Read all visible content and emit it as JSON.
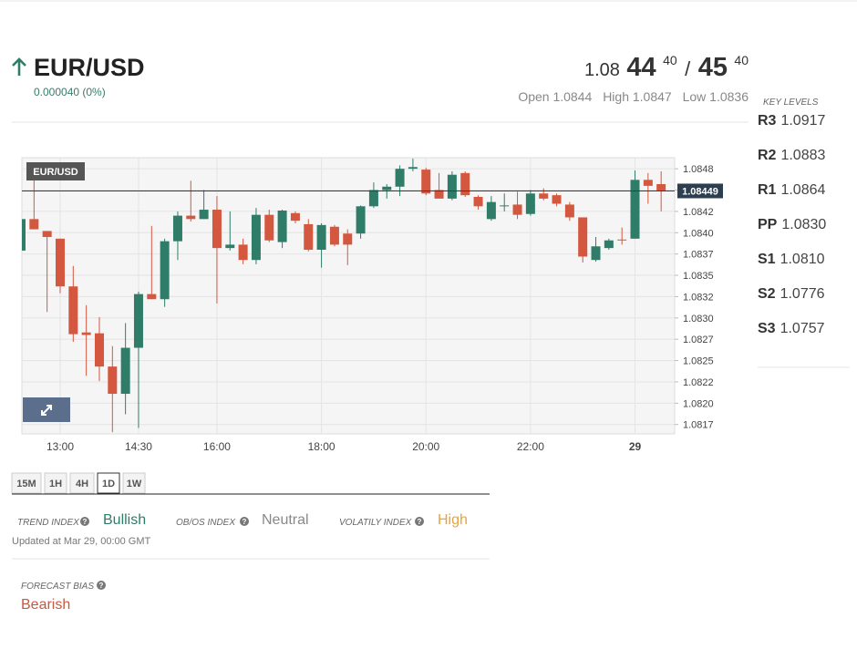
{
  "header": {
    "symbol": "EUR/USD",
    "change": "0.000040 (0%)",
    "quote": {
      "bid_big": "1.08",
      "bid_pips": "44",
      "bid_frac": "40",
      "separator": "/",
      "ask_pips": "45",
      "ask_frac": "40"
    },
    "stats": [
      "Open 1.0844",
      "High 1.0847",
      "Low 1.0836"
    ]
  },
  "key_levels": {
    "title": "KEY LEVELS",
    "levels": [
      {
        "name": "R3",
        "value": "1.0917"
      },
      {
        "name": "R2",
        "value": "1.0883"
      },
      {
        "name": "R1",
        "value": "1.0864"
      },
      {
        "name": "PP",
        "value": "1.0830"
      },
      {
        "name": "S1",
        "value": "1.0810"
      },
      {
        "name": "S2",
        "value": "1.0776"
      },
      {
        "name": "S3",
        "value": "1.0757"
      }
    ]
  },
  "chart_data": {
    "type": "candlestick",
    "title": "EUR/USD",
    "categories": [
      null,
      null,
      null,
      "13:00",
      null,
      null,
      null,
      null,
      null,
      "14:30",
      null,
      null,
      null,
      null,
      null,
      "16:00",
      null,
      null,
      null,
      null,
      null,
      null,
      null,
      "18:00",
      null,
      null,
      null,
      null,
      null,
      null,
      null,
      "20:00",
      null,
      null,
      null,
      null,
      null,
      null,
      null,
      "22:00",
      null,
      null,
      null,
      null,
      null,
      null,
      null,
      "29",
      null,
      null
    ],
    "open": [
      1.08379,
      1.08416,
      1.08402,
      1.08393,
      1.08337,
      1.08283,
      1.08282,
      1.08243,
      1.08211,
      1.08265,
      1.08328,
      1.08322,
      1.0839,
      1.0842,
      1.08416,
      1.08427,
      1.08382,
      1.08386,
      1.08368,
      1.08421,
      1.08389,
      1.08423,
      1.0841,
      1.0838,
      1.08407,
      1.08399,
      1.08399,
      1.08431,
      1.0845,
      1.08454,
      1.08475,
      1.08474,
      1.0845,
      1.0844,
      1.0847,
      1.08442,
      1.08416,
      1.08432,
      1.08433,
      1.08422,
      1.08446,
      1.08444,
      1.08433,
      1.08418,
      1.08368,
      1.08382,
      1.08392,
      1.08393,
      1.08462,
      1.08457
    ],
    "high": [
      1.08454,
      1.0847,
      1.08402,
      1.08393,
      1.08361,
      1.08315,
      1.08301,
      1.08267,
      1.08294,
      1.08331,
      1.08408,
      1.08393,
      1.08425,
      1.08461,
      1.0845,
      1.08443,
      1.08425,
      1.08393,
      1.08429,
      1.08427,
      1.08427,
      1.08425,
      1.08416,
      1.08411,
      1.08409,
      1.08404,
      1.08432,
      1.08459,
      1.08457,
      1.08479,
      1.08487,
      1.08476,
      1.0847,
      1.08472,
      1.08472,
      1.08444,
      1.08443,
      1.08446,
      1.08448,
      1.0845,
      1.08452,
      1.08446,
      1.08436,
      1.08418,
      1.08395,
      1.08393,
      1.08406,
      1.08473,
      1.0847,
      1.08472
    ],
    "low": [
      1.08379,
      1.08404,
      1.08307,
      1.08329,
      1.08272,
      1.08232,
      1.08226,
      1.08166,
      1.08187,
      1.08171,
      1.08322,
      1.08313,
      1.08368,
      1.08413,
      1.08416,
      1.08317,
      1.08379,
      1.08363,
      1.08363,
      1.08389,
      1.08382,
      1.08411,
      1.08378,
      1.08359,
      1.08384,
      1.08362,
      1.08393,
      1.08429,
      1.0844,
      1.08443,
      1.08472,
      1.08444,
      1.0844,
      1.08438,
      1.08442,
      1.08427,
      1.08414,
      1.08425,
      1.08416,
      1.0842,
      1.08438,
      1.08431,
      1.08414,
      1.08365,
      1.08366,
      1.0838,
      1.08386,
      1.08393,
      1.08434,
      1.08425
    ],
    "close": [
      1.08416,
      1.08404,
      1.08395,
      1.08337,
      1.08281,
      1.0828,
      1.08243,
      1.08211,
      1.08265,
      1.08328,
      1.08322,
      1.0839,
      1.0842,
      1.08416,
      1.08427,
      1.08382,
      1.08386,
      1.08368,
      1.08421,
      1.08391,
      1.08426,
      1.08414,
      1.0838,
      1.08409,
      1.08386,
      1.08386,
      1.08431,
      1.0845,
      1.08454,
      1.08475,
      1.08477,
      1.08446,
      1.0844,
      1.08468,
      1.08444,
      1.08431,
      1.08436,
      1.08432,
      1.08421,
      1.08446,
      1.0844,
      1.08434,
      1.08418,
      1.08372,
      1.08384,
      1.08391,
      1.08391,
      1.08462,
      1.08455,
      1.08449
    ],
    "up_color": "#2f7d69",
    "down_color": "#d4573f",
    "current_price": 1.08449,
    "ylim": [
      1.08164,
      1.08488
    ],
    "yticks": [
      {
        "value": 1.08475,
        "label": "1.0848"
      },
      1.0845,
      {
        "value": 1.08425,
        "label": "1.0842"
      },
      {
        "value": 1.084,
        "label": "1.0840"
      },
      {
        "value": 1.08375,
        "label": "1.0837"
      },
      1.0835,
      {
        "value": 1.08325,
        "label": "1.0832"
      },
      {
        "value": 1.083,
        "label": "1.0830"
      },
      {
        "value": 1.08275,
        "label": "1.0827"
      },
      1.0825,
      {
        "value": 1.08225,
        "label": "1.0822"
      },
      {
        "value": 1.082,
        "label": "1.0820"
      },
      {
        "value": 1.08175,
        "label": "1.0817"
      }
    ],
    "grid": true
  },
  "tabs": {
    "items": [
      "15M",
      "1H",
      "4H",
      "1D",
      "1W"
    ],
    "active": "1D"
  },
  "indices": [
    {
      "label": "TREND INDEX",
      "value": "Bullish",
      "color": "#2f7d69"
    },
    {
      "label": "OB/OS INDEX",
      "value": "Neutral",
      "color": "#888888"
    },
    {
      "label": "VOLATILY INDEX",
      "value": "High",
      "color": "#e8a33d"
    }
  ],
  "updated": "Updated at Mar 29, 00:00 GMT",
  "forecast": {
    "label": "FORECAST BIAS",
    "value": "Bearish",
    "color": "#c9573f"
  }
}
